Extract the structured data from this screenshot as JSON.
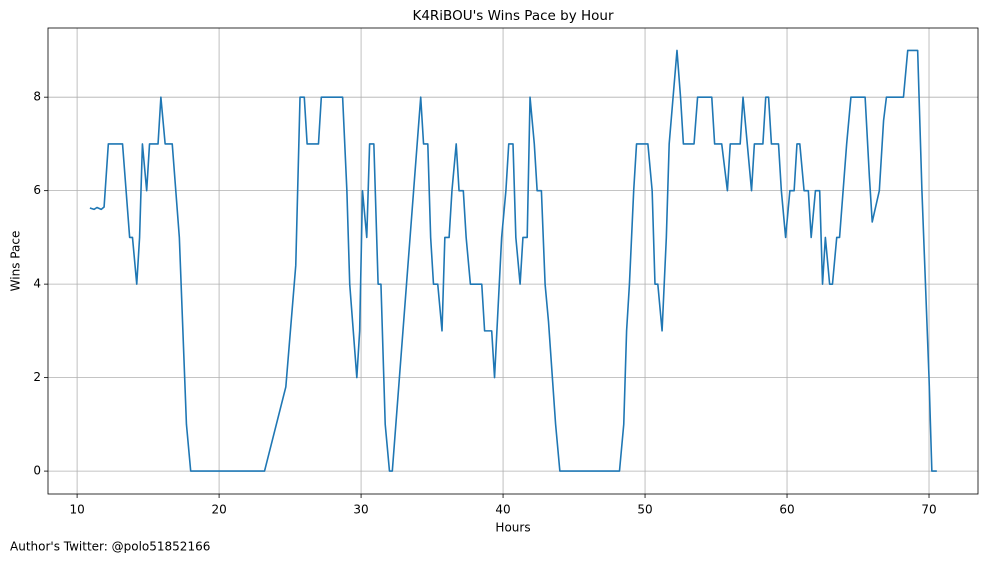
{
  "chart_data": {
    "type": "line",
    "title": "K4RiBOU's Wins Pace by Hour",
    "x_label": "Hours",
    "y_label": "Wins Pace",
    "footer": "Author's Twitter: @polo51852166",
    "color": "#1f77b4",
    "grid": true,
    "xlim": [
      7.95,
      73.45
    ],
    "ylim": [
      -0.49,
      9.48
    ],
    "xticks": [
      10,
      20,
      30,
      40,
      50,
      60,
      70
    ],
    "yticks": [
      0,
      2,
      4,
      6,
      8
    ],
    "x": [
      10.9,
      11.2,
      11.4,
      11.7,
      11.9,
      12.2,
      13.2,
      13.7,
      13.9,
      14.2,
      14.4,
      14.6,
      14.9,
      15.1,
      15.7,
      15.9,
      16.2,
      16.7,
      17.2,
      17.7,
      18.0,
      23.2,
      24.7,
      25.4,
      25.7,
      26.0,
      26.2,
      27.0,
      27.2,
      28.7,
      29.0,
      29.2,
      29.7,
      29.9,
      30.1,
      30.4,
      30.6,
      30.9,
      31.2,
      31.4,
      31.7,
      32.0,
      32.2,
      32.7,
      33.2,
      33.7,
      34.2,
      34.4,
      34.7,
      34.9,
      35.1,
      35.4,
      35.7,
      35.9,
      36.2,
      36.4,
      36.7,
      36.9,
      37.2,
      37.4,
      37.7,
      38.5,
      38.7,
      39.2,
      39.4,
      39.9,
      40.2,
      40.4,
      40.7,
      40.9,
      41.2,
      41.4,
      41.7,
      41.9,
      42.2,
      42.4,
      42.7,
      42.96,
      43.2,
      43.7,
      44.0,
      48.2,
      48.5,
      48.7,
      48.9,
      49.2,
      49.4,
      50.2,
      50.5,
      50.7,
      50.9,
      51.2,
      51.5,
      51.7,
      52.25,
      52.5,
      52.7,
      53.45,
      53.7,
      54.7,
      54.9,
      55.4,
      55.8,
      56.0,
      56.7,
      56.9,
      57.2,
      57.5,
      57.7,
      58.3,
      58.5,
      58.7,
      58.9,
      59.4,
      59.6,
      59.9,
      60.2,
      60.5,
      60.7,
      60.9,
      61.2,
      61.5,
      61.7,
      62.0,
      62.3,
      62.5,
      62.7,
      63.0,
      63.2,
      63.5,
      63.7,
      64.2,
      64.5,
      65.5,
      65.8,
      66.0,
      66.5,
      66.8,
      67.0,
      68.2,
      68.5,
      69.2,
      69.5,
      70.0,
      70.2,
      70.55
    ],
    "values": [
      5.63,
      5.6,
      5.64,
      5.6,
      5.65,
      7,
      7,
      5,
      5,
      4,
      5,
      7,
      6,
      7,
      7,
      8,
      7,
      7,
      5,
      1,
      0,
      0,
      1.8,
      4.4,
      8,
      8,
      7,
      7,
      8,
      8,
      6,
      4,
      2,
      3,
      6,
      5,
      7,
      7,
      4,
      4,
      1,
      0,
      0,
      2,
      4,
      6,
      8,
      7,
      7,
      5,
      4,
      4,
      3,
      5,
      5,
      6,
      7,
      6,
      6,
      5,
      4,
      4,
      3,
      3,
      2,
      5,
      6,
      7,
      7,
      5,
      4,
      5,
      5,
      8,
      7,
      6,
      6,
      4,
      3.2,
      1,
      0,
      0,
      1,
      3,
      4,
      6,
      7,
      7,
      6,
      4,
      4,
      3,
      5,
      7,
      9,
      8,
      7,
      7,
      8,
      8,
      7,
      7,
      6,
      7,
      7,
      8,
      7,
      6,
      7,
      7,
      8,
      8,
      7,
      7,
      6,
      5,
      6,
      6,
      7,
      7,
      6,
      6,
      5,
      6,
      6,
      4,
      5,
      4,
      4,
      5,
      5,
      7,
      8,
      8,
      6.3,
      5.33,
      6,
      7.5,
      8,
      8,
      9,
      9,
      6,
      2,
      0,
      0
    ]
  }
}
